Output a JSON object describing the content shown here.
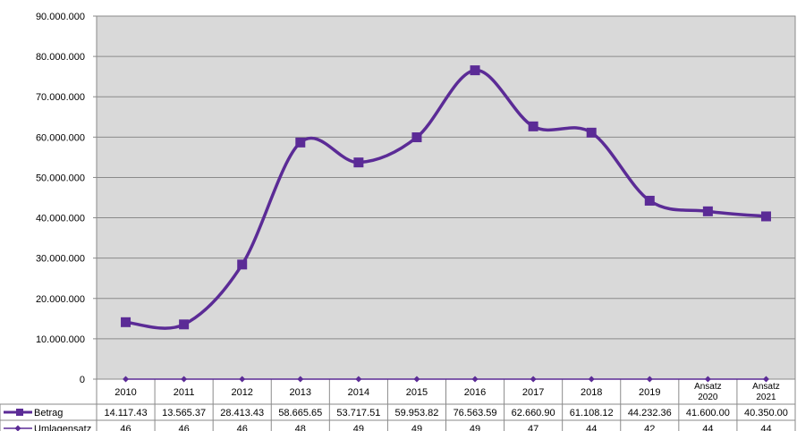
{
  "chart_data": {
    "type": "line",
    "categories": [
      "2010",
      "2011",
      "2012",
      "2013",
      "2014",
      "2015",
      "2016",
      "2017",
      "2018",
      "2019",
      "Ansatz 2020",
      "Ansatz 2021"
    ],
    "y_ticks": [
      "0",
      "10.000.000",
      "20.000.000",
      "30.000.000",
      "40.000.000",
      "50.000.000",
      "60.000.000",
      "70.000.000",
      "80.000.000",
      "90.000.000"
    ],
    "ylim": [
      0,
      90000000
    ],
    "grid": true,
    "series": [
      {
        "name": "Betrag",
        "color": "#5b2b96",
        "marker": "square",
        "values": [
          14117430,
          13565370,
          28413430,
          58665650,
          53717510,
          59953820,
          76563590,
          62660900,
          61108120,
          44232360,
          41600000,
          40350000
        ],
        "table_values": [
          "14.117.43",
          "13.565.37",
          "28.413.43",
          "58.665.65",
          "53.717.51",
          "59.953.82",
          "76.563.59",
          "62.660.90",
          "61.108.12",
          "44.232.36",
          "41.600.00",
          "40.350.00"
        ]
      },
      {
        "name": "Umlagensatz",
        "color": "#5b2b96",
        "marker": "diamond",
        "values": [
          46,
          46,
          46,
          48,
          49,
          49,
          49,
          47,
          44,
          42,
          44,
          44
        ],
        "table_values": [
          "46",
          "46",
          "46",
          "48",
          "49",
          "49",
          "49",
          "47",
          "44",
          "42",
          "44",
          "44"
        ]
      }
    ]
  }
}
